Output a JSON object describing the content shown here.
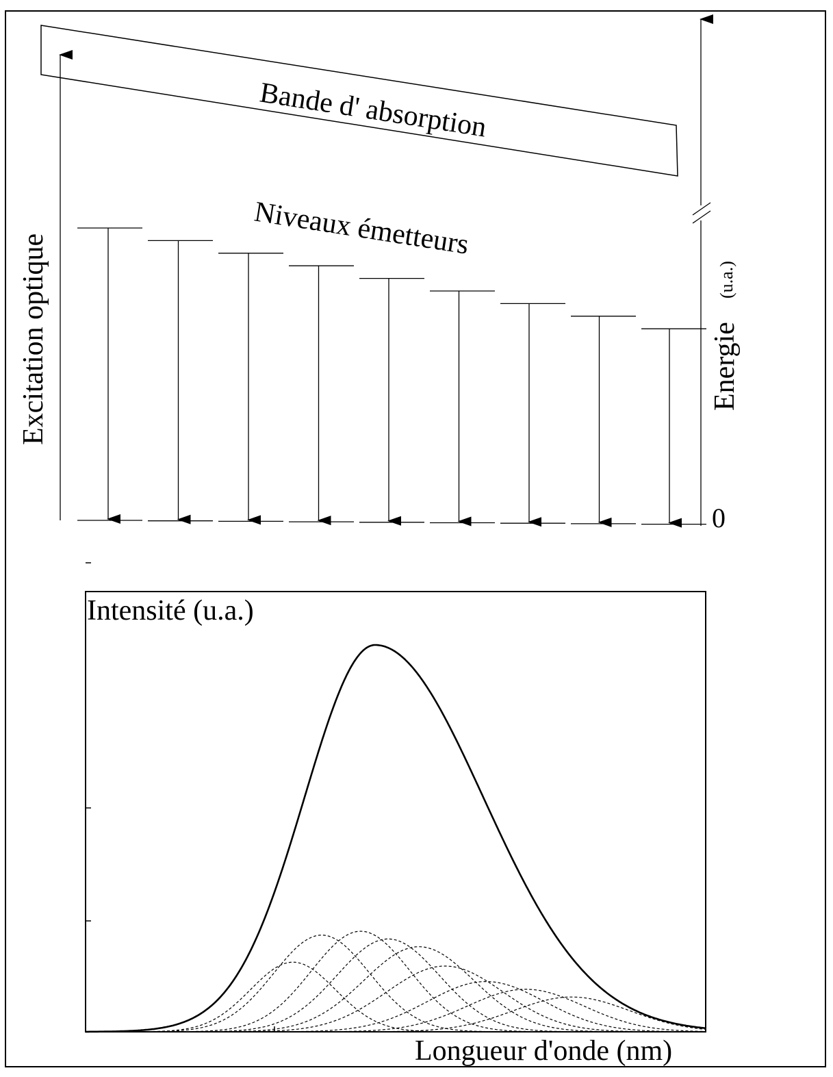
{
  "diagram": {
    "absorption_band_label": "Bande d' absorption",
    "emitting_levels_label": "Niveaux émetteurs",
    "excitation_label": "Excitation optique",
    "energy_label": "Energie",
    "energy_unit": "(u.a.)",
    "zero_label": "0",
    "level_count": 9
  },
  "chart_data": {
    "type": "line",
    "title": "",
    "ylabel": "Intensité (u.a.)",
    "xlabel": "Longueur d'onde (nm)",
    "x_tick_labels": [],
    "y_tick_labels": [],
    "grid": false,
    "legend": "none",
    "ylim": [
      0,
      1
    ],
    "series": [
      {
        "style": "solid",
        "peak": 1.0
      },
      {
        "style": "dashed",
        "peak": 0.18
      },
      {
        "style": "dashed",
        "peak": 0.25
      },
      {
        "style": "dashed",
        "peak": 0.26
      },
      {
        "style": "dashed",
        "peak": 0.24
      },
      {
        "style": "dashed",
        "peak": 0.22
      },
      {
        "style": "dashed",
        "peak": 0.17
      },
      {
        "style": "dashed",
        "peak": 0.13
      },
      {
        "style": "dashed",
        "peak": 0.11
      },
      {
        "style": "dashed",
        "peak": 0.09
      }
    ]
  }
}
